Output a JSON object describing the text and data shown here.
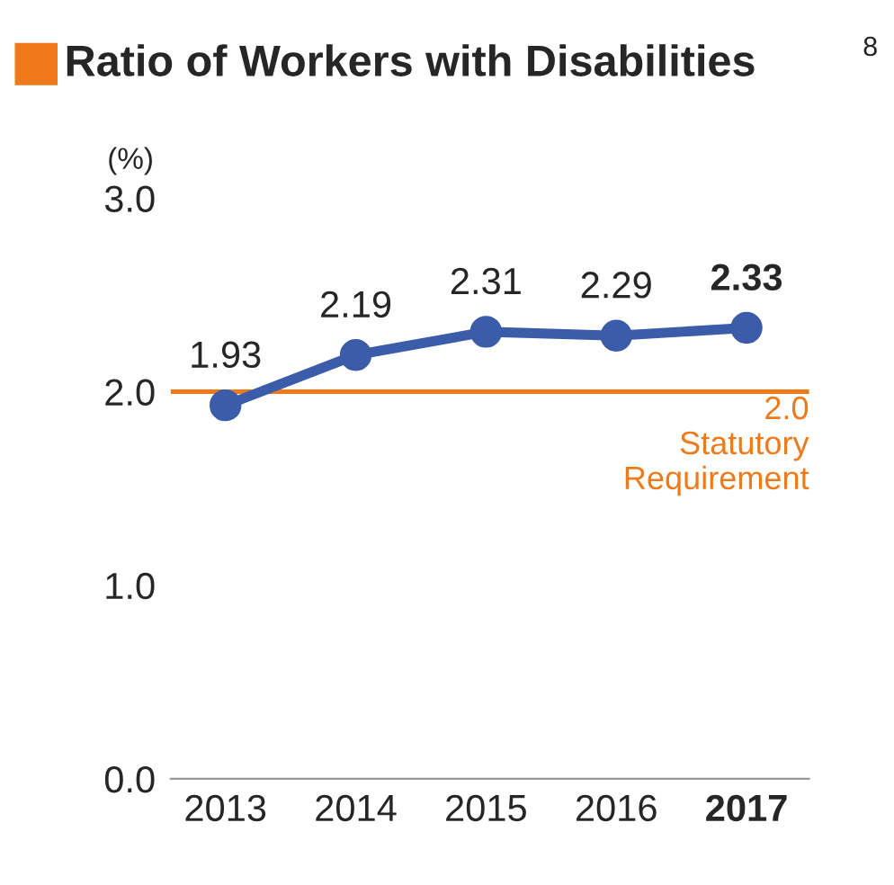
{
  "chart_data": {
    "type": "line",
    "title": "Ratio of Workers with Disabilities",
    "ylabel": "(%)",
    "annotations": [
      "8"
    ],
    "categories": [
      "2013",
      "2014",
      "2015",
      "2016",
      "2017"
    ],
    "series": [
      {
        "color": "#3b5ca8",
        "values": [
          1.93,
          2.19,
          2.31,
          2.29,
          2.33
        ]
      }
    ],
    "ylim": [
      0,
      3.0
    ],
    "yticks": [
      {
        "value": 0,
        "label": "0.0"
      },
      {
        "value": 1,
        "label": "1.0"
      },
      {
        "value": 2,
        "label": "2.0"
      },
      {
        "value": 3,
        "label": "3.0"
      }
    ],
    "ref_lines": [
      {
        "axis": "y",
        "value": 2.0,
        "label": "2.0\nStatutory\nRequirement",
        "color": "#ee7a1a",
        "line_style": "solid"
      }
    ],
    "data_labels": true,
    "marker": "circle",
    "line_style": "solid",
    "grid": false
  }
}
